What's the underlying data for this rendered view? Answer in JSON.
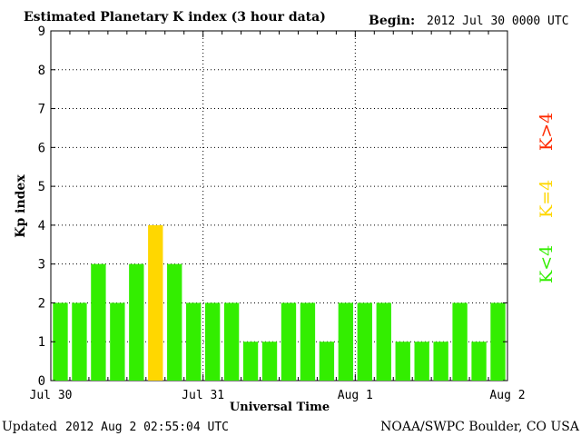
{
  "chart_data": {
    "type": "bar",
    "title": "Estimated Planetary K index (3 hour data)",
    "begin_label": "Begin:",
    "begin_value": "2012 Jul 30 0000 UTC",
    "xlabel": "Universal Time",
    "ylabel": "Kp index",
    "ylim": [
      0,
      9
    ],
    "yticks": [
      "0",
      "1",
      "2",
      "3",
      "4",
      "5",
      "6",
      "7",
      "8",
      "9"
    ],
    "xticks": [
      "Jul 30",
      "Jul 31",
      "Aug 1",
      "Aug 2"
    ],
    "grid": true,
    "values": [
      2,
      2,
      3,
      2,
      3,
      4,
      3,
      2,
      2,
      2,
      1,
      1,
      2,
      2,
      1,
      2,
      2,
      2,
      1,
      1,
      1,
      2,
      1,
      2
    ],
    "colors": {
      "below_4": "#33ee00",
      "equal_4": "#ffd700",
      "above_4": "#ff2a00"
    },
    "legend": [
      {
        "label": "K<4",
        "color": "#33ee00"
      },
      {
        "label": "K=4",
        "color": "#ffd700"
      },
      {
        "label": "K>4",
        "color": "#ff2a00"
      }
    ],
    "legend_placement": "right"
  },
  "footer": {
    "updated_label": "Updated",
    "updated_value": "2012 Aug  2 02:55:04 UTC",
    "source": "NOAA/SWPC Boulder, CO USA"
  }
}
